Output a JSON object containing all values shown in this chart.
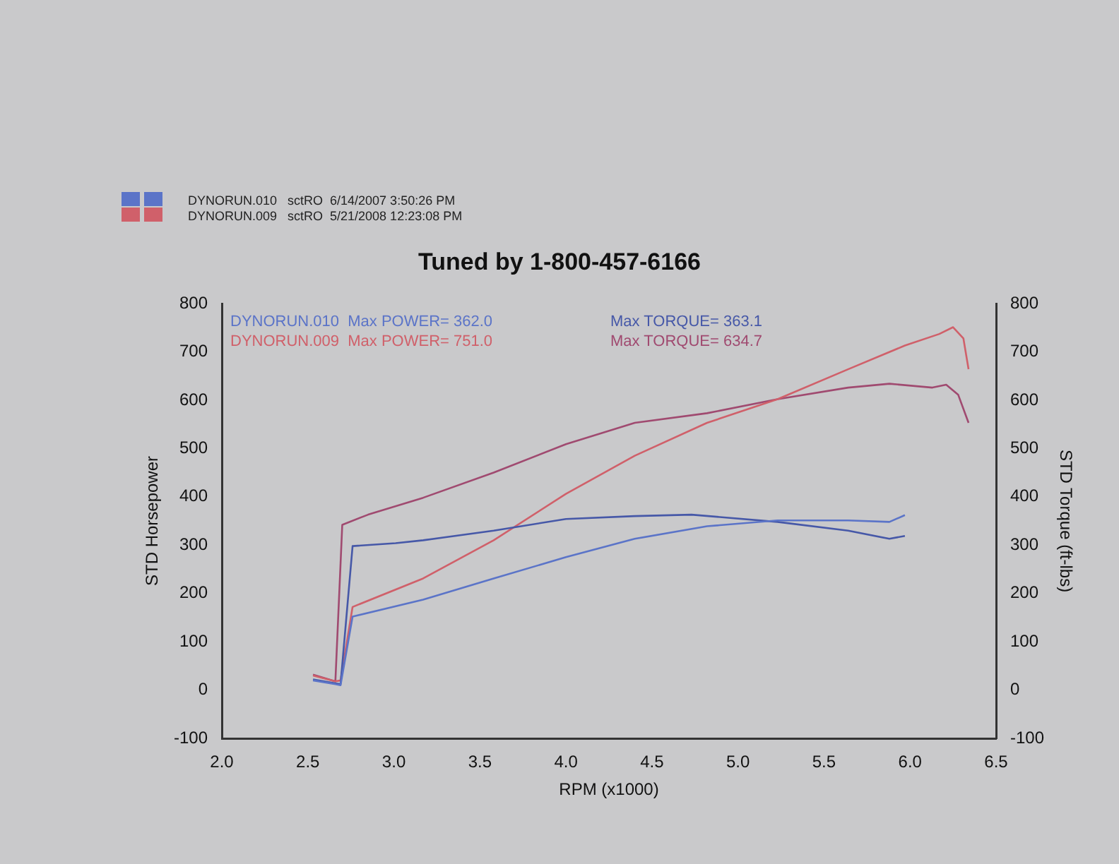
{
  "chart_data": {
    "type": "line",
    "title": "Tuned by 1-800-457-6166",
    "xlabel": "RPM (x1000)",
    "ylabel": "STD Horsepower",
    "y2label": "STD Torque (ft-lbs)",
    "annotations": [
      "DYNORUN.010   sctRO  6/14/2007 3:50:26 PM",
      "DYNORUN.009   sctRO  5/21/2008 12:23:08 PM",
      "DYNORUN.010  Max POWER= 362.0",
      "Max TORQUE= 363.1",
      "DYNORUN.009  Max POWER= 751.0",
      "Max TORQUE= 634.7"
    ],
    "series": [
      {
        "color": "#5b74c8",
        "x": [
          2.53,
          2.66,
          2.69,
          2.76,
          3.17,
          3.58,
          4.0,
          4.4,
          4.82,
          5.23,
          5.64,
          5.88,
          5.97
        ],
        "values": [
          20,
          12,
          10,
          152,
          187,
          231,
          275,
          313,
          339,
          351,
          351,
          348,
          362
        ]
      },
      {
        "color": "#4658a8",
        "axis": "y2",
        "x": [
          2.53,
          2.66,
          2.69,
          2.76,
          3.01,
          3.17,
          3.58,
          4.0,
          4.4,
          4.73,
          5.23,
          5.64,
          5.88,
          5.97
        ],
        "values": [
          22,
          14,
          12,
          298,
          304,
          310,
          330,
          354,
          360,
          363,
          348,
          330,
          313,
          319
        ]
      },
      {
        "color": "#d0606a",
        "x": [
          2.53,
          2.66,
          2.69,
          2.76,
          3.17,
          3.58,
          4.0,
          4.4,
          4.82,
          5.23,
          5.64,
          5.97,
          6.17,
          6.25,
          6.31,
          6.34
        ],
        "values": [
          30,
          18,
          20,
          172,
          231,
          310,
          406,
          485,
          553,
          602,
          664,
          713,
          737,
          751,
          728,
          664
        ]
      },
      {
        "color": "#a04a70",
        "axis": "y2",
        "x": [
          2.53,
          2.66,
          2.7,
          2.85,
          3.17,
          3.58,
          4.0,
          4.4,
          4.82,
          5.23,
          5.64,
          5.88,
          6.13,
          6.21,
          6.28,
          6.34
        ],
        "values": [
          32,
          18,
          342,
          363,
          398,
          450,
          509,
          553,
          573,
          602,
          626,
          634,
          626,
          632,
          611,
          553
        ]
      }
    ],
    "xlim": [
      2.0,
      6.5
    ],
    "xticks": [
      {
        "value": 2,
        "label": "2.0"
      },
      {
        "value": 2.5,
        "label": "2.5"
      },
      {
        "value": 3,
        "label": "3.0"
      },
      {
        "value": 3.5,
        "label": "3.5"
      },
      {
        "value": 4,
        "label": "4.0"
      },
      {
        "value": 4.5,
        "label": "4.5"
      },
      {
        "value": 5,
        "label": "5.0"
      },
      {
        "value": 5.5,
        "label": "5.5"
      },
      {
        "value": 6,
        "label": "6.0"
      },
      {
        "value": 6.5,
        "label": "6.5"
      }
    ],
    "ylim": [
      -100,
      800
    ],
    "yticks": [
      -100,
      0,
      100,
      200,
      300,
      400,
      500,
      600,
      700,
      800
    ],
    "y2lim": [
      -100,
      800
    ],
    "y2ticks": [
      -100,
      0,
      100,
      200,
      300,
      400,
      500,
      600,
      700,
      800
    ],
    "grid": false,
    "legend": false,
    "marker": "none",
    "line_style": "solid"
  }
}
